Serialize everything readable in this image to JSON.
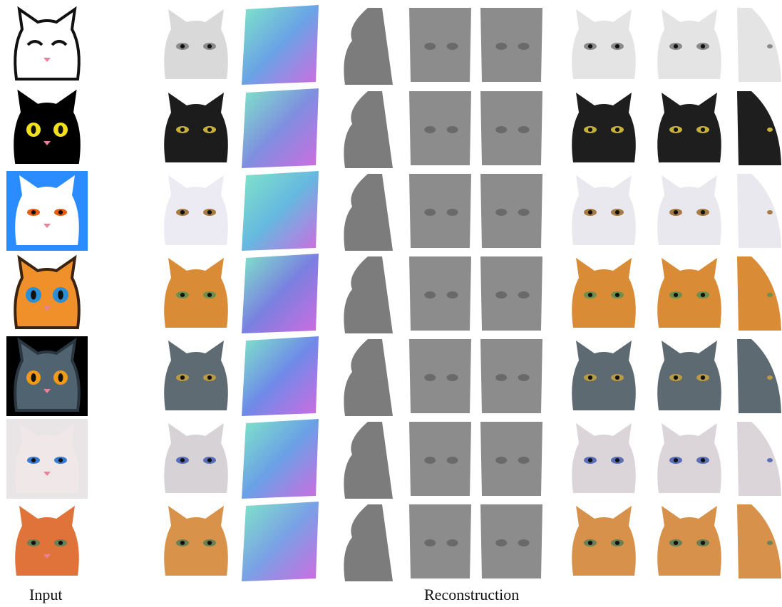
{
  "captions": {
    "input": "Input",
    "reconstruction": "Reconstruction"
  },
  "rows": [
    {
      "input": {
        "style": "cartoon",
        "bg": "#ffffff",
        "face": "#ffffff",
        "line": "#111111",
        "eyes": "closed",
        "eye_color": "#111111"
      },
      "albedo": "#d9d9d9",
      "normal_tint": "#6aa3e6",
      "render_color": "#e4e4e4",
      "eye_color": "#8a8a8a"
    },
    {
      "input": {
        "style": "cartoon",
        "bg": "#ffffff",
        "face": "#000000",
        "line": "#000000",
        "eyes": "round",
        "eye_color": "#f2e11b"
      },
      "albedo": "#1c1c1c",
      "normal_tint": "#7f8fe0",
      "render_color": "#1e1e1e",
      "eye_color": "#c6b23a"
    },
    {
      "input": {
        "style": "fluffy",
        "bg": "#2b8cff",
        "face": "#ffffff",
        "line": "#ffffff",
        "eyes": "almond",
        "eye_color": "#e85d10"
      },
      "albedo": "#eceaf2",
      "normal_tint": "#66b8e0",
      "render_color": "#e8e8ee",
      "eye_color": "#a57b46"
    },
    {
      "input": {
        "style": "cartoon",
        "bg": "#ffffff",
        "face": "#f0902a",
        "line": "#3b2210",
        "eyes": "big",
        "eye_color": "#2b8fd6"
      },
      "albedo": "#d98b35",
      "normal_tint": "#7a80e0",
      "render_color": "#d98b35",
      "eye_color": "#6d8f4e"
    },
    {
      "input": {
        "style": "cartoon",
        "bg": "#000000",
        "face": "#4f6470",
        "line": "#2a3740",
        "eyes": "round",
        "eye_color": "#f09a1c"
      },
      "albedo": "#5f6b73",
      "normal_tint": "#6f8ae8",
      "render_color": "#5e6a72",
      "eye_color": "#b99a45"
    },
    {
      "input": {
        "style": "painting",
        "bg": "#e9e4e6",
        "face": "#efe7e8",
        "line": "#c9a4a8",
        "eyes": "almond",
        "eye_color": "#3c7ad0"
      },
      "albedo": "#d7d2d6",
      "normal_tint": "#6aa0e6",
      "render_color": "#dbd5da",
      "eye_color": "#5a6fb8"
    },
    {
      "input": {
        "style": "painting",
        "bg": "#ffffff",
        "face": "#e0733a",
        "line": "#3a1c10",
        "eyes": "almond",
        "eye_color": "#6a7f55"
      },
      "albedo": "#d9924a",
      "normal_tint": "#7aa0e6",
      "render_color": "#d8914a",
      "eye_color": "#6a7f55"
    }
  ]
}
